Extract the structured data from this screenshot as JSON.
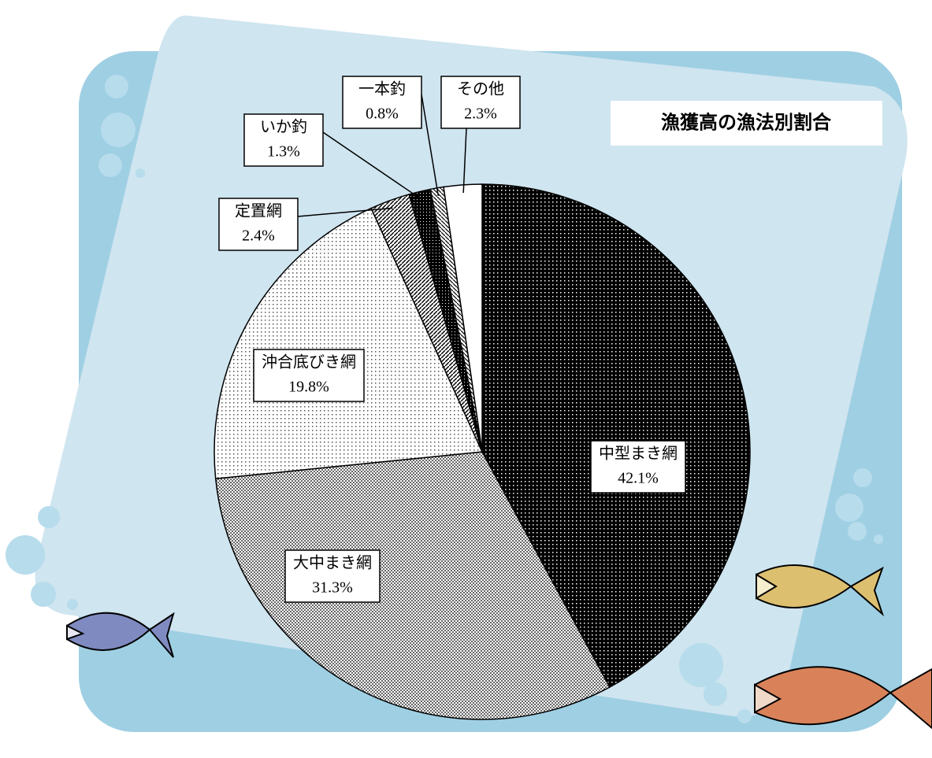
{
  "chart_data": {
    "type": "pie",
    "title": "漁獲高の漁法別割合",
    "categories": [
      "中型まき網",
      "大中まき網",
      "沖合底びき網",
      "定置網",
      "いか釣",
      "一本釣",
      "その他"
    ],
    "values": [
      42.1,
      31.3,
      19.8,
      2.4,
      1.3,
      0.8,
      2.3
    ],
    "value_labels": [
      "42.1%",
      "31.3%",
      "19.8%",
      "2.4%",
      "1.3%",
      "0.8%",
      "2.3%"
    ]
  }
}
